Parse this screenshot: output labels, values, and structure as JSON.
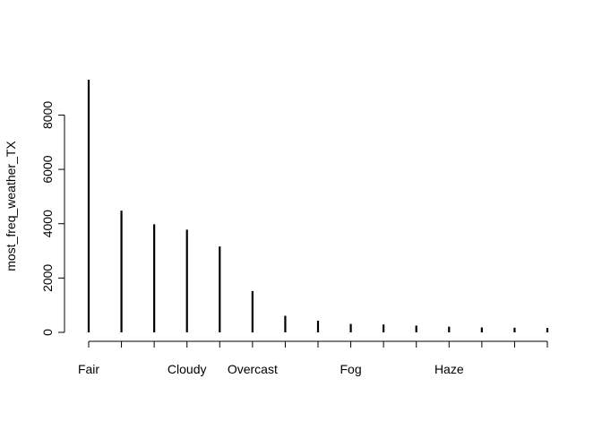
{
  "chart_data": {
    "type": "bar",
    "title": "",
    "xlabel": "",
    "ylabel": "most_freq_weather_TX",
    "ylim": [
      0,
      9300
    ],
    "grid": false,
    "legend": "none",
    "yticks": [
      0,
      2000,
      4000,
      6000,
      8000
    ],
    "categories": [
      "Fair",
      "",
      "",
      "Cloudy",
      "",
      "Overcast",
      "",
      "",
      "Fog",
      "",
      "",
      "Haze",
      "",
      "",
      ""
    ],
    "visible_tick_labels": [
      "Fair",
      "Cloudy",
      "Overcast",
      "Fog",
      "Haze"
    ],
    "values": [
      9300,
      4480,
      3980,
      3780,
      3160,
      1520,
      610,
      430,
      310,
      290,
      250,
      210,
      180,
      170,
      160
    ],
    "bar_color": "#000000"
  }
}
